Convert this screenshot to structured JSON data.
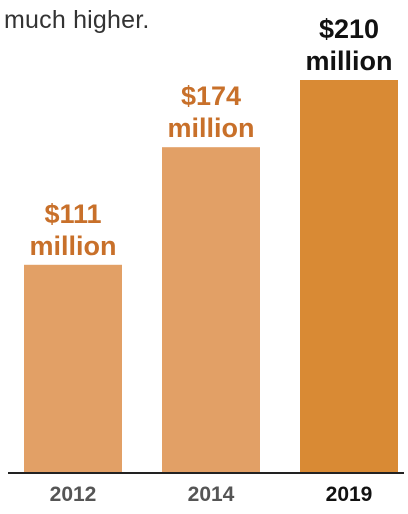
{
  "caption": "much higher.",
  "colors": {
    "bar_default": "#e2a066",
    "bar_highlight": "#d98a34",
    "label_default": "#c8702a",
    "label_highlight": "#111111",
    "tick_default": "#555555",
    "tick_highlight": "#111111",
    "axis": "#222222"
  },
  "chart_data": {
    "type": "bar",
    "categories": [
      "2012",
      "2014",
      "2019"
    ],
    "values": [
      111,
      174,
      210
    ],
    "value_labels": [
      [
        "$111",
        "million"
      ],
      [
        "$174",
        "million"
      ],
      [
        "$210",
        "million"
      ]
    ],
    "highlight_index": 2,
    "unit": "million USD",
    "ylim": [
      0,
      210
    ],
    "grid": false,
    "legend": "none",
    "title": "",
    "xlabel": "",
    "ylabel": ""
  }
}
